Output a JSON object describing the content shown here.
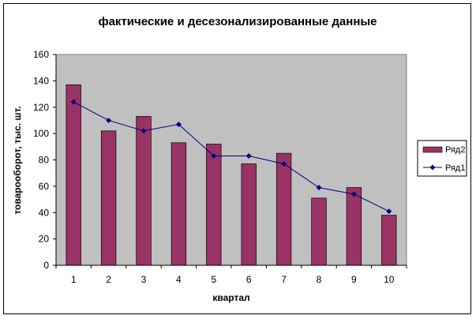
{
  "chart_data": {
    "type": "bar",
    "title": "фактические и десезонализированные данные",
    "xlabel": "квартал",
    "ylabel": "товарооборот, тыс. шт.",
    "categories": [
      "1",
      "2",
      "3",
      "4",
      "5",
      "6",
      "7",
      "8",
      "9",
      "10"
    ],
    "ylim": [
      0,
      160
    ],
    "yticks": [
      "0",
      "20",
      "40",
      "60",
      "80",
      "100",
      "120",
      "140",
      "160"
    ],
    "series": [
      {
        "name": "Ряд2",
        "type": "bar",
        "color": "#993366",
        "values": [
          137,
          102,
          113,
          93,
          92,
          77,
          85,
          51,
          59,
          38
        ]
      },
      {
        "name": "Ряд1",
        "type": "line",
        "color": "#000080",
        "values": [
          124,
          110,
          102,
          107,
          83,
          83,
          77,
          59,
          54,
          41
        ]
      }
    ],
    "plot_background": "#c0c0c0",
    "grid": false,
    "legend": "right"
  }
}
